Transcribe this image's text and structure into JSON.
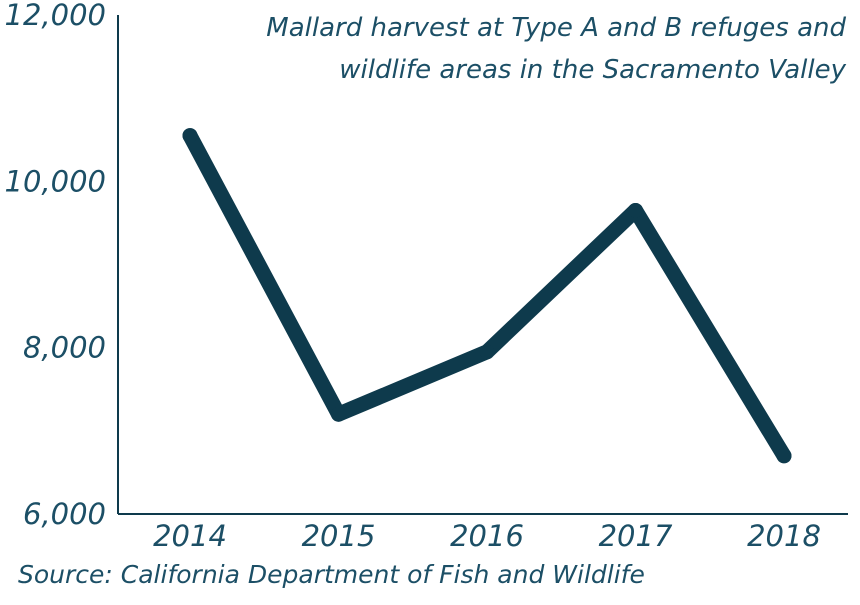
{
  "chart_data": {
    "type": "line",
    "title_lines": [
      "Mallard harvest at Type A and B refuges and",
      "wildlife areas in the Sacramento Valley"
    ],
    "xlabel": "",
    "ylabel": "",
    "categories": [
      "2014",
      "2015",
      "2016",
      "2017",
      "2018"
    ],
    "series": [
      {
        "values": [
          10550,
          7200,
          7950,
          9650,
          6700
        ]
      }
    ],
    "ylim": [
      6000,
      12000
    ],
    "yticks": [
      6000,
      8000,
      10000,
      12000
    ],
    "ytick_labels": [
      "6,000",
      "8,000",
      "10,000",
      "12,000"
    ],
    "grid": false,
    "line_color": "#0e3a4c",
    "text_color": "#1c4f66"
  },
  "source": "Source: California Department of Fish and Wildlife"
}
